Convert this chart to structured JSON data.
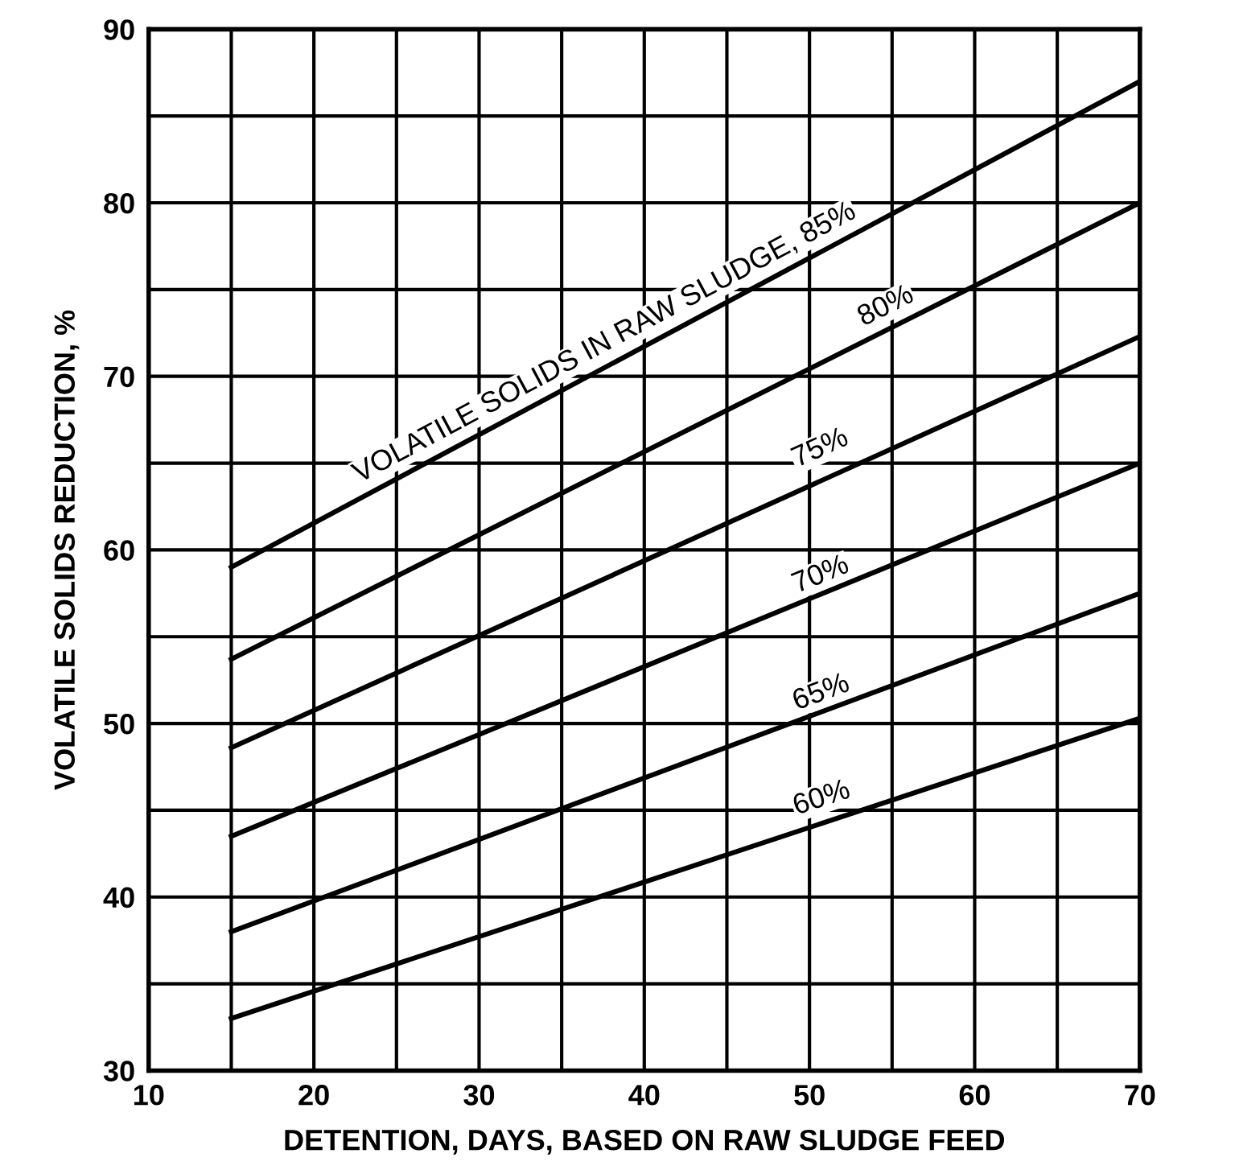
{
  "chart_data": {
    "type": "line",
    "xlabel": "DETENTION, DAYS, BASED ON RAW SLUDGE FEED",
    "ylabel": "VOLATILE SOLIDS REDUCTION, %",
    "x": [
      15,
      70
    ],
    "series": [
      {
        "color": "#000000",
        "values": [
          59,
          87
        ]
      },
      {
        "color": "#000000",
        "values": [
          53.7,
          80
        ]
      },
      {
        "color": "#000000",
        "values": [
          48.6,
          72.3
        ]
      },
      {
        "color": "#000000",
        "values": [
          43.5,
          65
        ]
      },
      {
        "color": "#000000",
        "values": [
          38,
          57.5
        ]
      },
      {
        "color": "#000000",
        "values": [
          33,
          50.3
        ]
      }
    ],
    "annotations": [
      {
        "text": "VOLATILE SOLIDS IN RAW SLUDGE, 85%",
        "x": 38,
        "y": 70.7
      },
      {
        "text": "80%",
        "x": 55,
        "y": 72.8
      },
      {
        "text": "75%",
        "x": 51,
        "y": 64.6
      },
      {
        "text": "70%",
        "x": 51,
        "y": 57.3
      },
      {
        "text": "65%",
        "x": 51,
        "y": 50.5
      },
      {
        "text": "60%",
        "x": 51,
        "y": 44.4
      }
    ],
    "xlim": [
      10,
      70
    ],
    "ylim": [
      30,
      90
    ],
    "xticks": [
      10,
      {
        "value": 15,
        "label": null
      },
      20,
      {
        "value": 25,
        "label": null
      },
      30,
      {
        "value": 35,
        "label": null
      },
      40,
      {
        "value": 45,
        "label": null
      },
      50,
      {
        "value": 55,
        "label": null
      },
      60,
      {
        "value": 65,
        "label": null
      },
      70
    ],
    "yticks": [
      30,
      {
        "value": 35,
        "label": null
      },
      40,
      {
        "value": 45,
        "label": null
      },
      50,
      {
        "value": 55,
        "label": null
      },
      60,
      {
        "value": 65,
        "label": null
      },
      70,
      {
        "value": 75,
        "label": null
      },
      80,
      {
        "value": 85,
        "label": null
      },
      90
    ],
    "grid": true,
    "legend": false,
    "marker": "none",
    "line_style": "solid"
  }
}
